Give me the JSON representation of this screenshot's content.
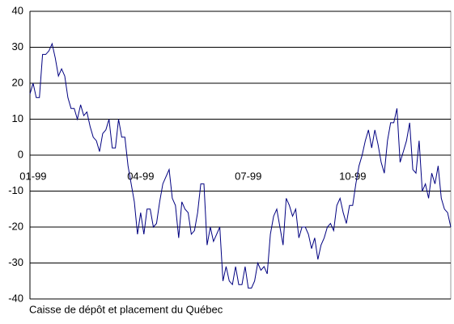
{
  "chart_data": {
    "type": "line",
    "footnote": "Caisse de dépôt et placement du Québec",
    "categories": [
      null,
      "01-99",
      null,
      null,
      null,
      null,
      null,
      null,
      null,
      null,
      null,
      null,
      null,
      null,
      null,
      null,
      null,
      null,
      null,
      null,
      null,
      null,
      null,
      null,
      null,
      null,
      null,
      null,
      null,
      null,
      null,
      null,
      null,
      null,
      null,
      "04-99",
      null,
      null,
      null,
      null,
      null,
      null,
      null,
      null,
      null,
      null,
      null,
      null,
      null,
      null,
      null,
      null,
      null,
      null,
      null,
      null,
      null,
      null,
      null,
      null,
      null,
      null,
      null,
      null,
      null,
      null,
      null,
      null,
      null,
      "07-99",
      null,
      null,
      null,
      null,
      null,
      null,
      null,
      null,
      null,
      null,
      null,
      null,
      null,
      null,
      null,
      null,
      null,
      null,
      null,
      null,
      null,
      null,
      null,
      null,
      null,
      null,
      null,
      null,
      null,
      null,
      null,
      null,
      "10-99",
      null,
      null,
      null,
      null,
      null,
      null,
      null,
      null,
      null,
      null,
      null,
      null,
      null,
      null,
      null,
      null,
      null,
      null,
      null,
      null,
      null,
      null,
      null,
      null,
      null,
      null,
      null,
      null,
      null,
      null,
      null
    ],
    "color": "#000080",
    "values": [
      17,
      20,
      16,
      16,
      28,
      28,
      29,
      31,
      27,
      22,
      24,
      22,
      16,
      13,
      13,
      10,
      14,
      11,
      12,
      8,
      5,
      4,
      1,
      6,
      7,
      10,
      2,
      2,
      10,
      5,
      5,
      -3,
      -8,
      -13,
      -22,
      -16,
      -22,
      -15,
      -15,
      -20,
      -19,
      -13,
      -8,
      -6,
      -4,
      -12,
      -14,
      -23,
      -13,
      -15,
      -16,
      -22,
      -21,
      -16,
      -8,
      -8,
      -25,
      -20,
      -24,
      -22,
      -20,
      -35,
      -31,
      -35,
      -36,
      -31,
      -36,
      -36,
      -31,
      -37,
      -37,
      -35,
      -30,
      -32,
      -31,
      -33,
      -22,
      -17,
      -15,
      -20,
      -25,
      -12,
      -14,
      -17,
      -15,
      -23,
      -20,
      -20,
      -22,
      -26,
      -23,
      -29,
      -25,
      -23,
      -20,
      -19,
      -21,
      -14,
      -12,
      -16,
      -19,
      -14,
      -14,
      -8,
      -3,
      0,
      4,
      7,
      2,
      7,
      3,
      -2,
      -5,
      4,
      9,
      9,
      13,
      -2,
      1,
      4,
      9,
      -4,
      -5,
      4,
      -10,
      -8,
      -12,
      -5,
      -8,
      -3,
      -12,
      -15,
      -16,
      -20
    ],
    "ylim": [
      -40,
      40
    ],
    "yticks": [
      -40,
      -30,
      -20,
      -10,
      0,
      10,
      20,
      30,
      40
    ],
    "grid": true
  }
}
